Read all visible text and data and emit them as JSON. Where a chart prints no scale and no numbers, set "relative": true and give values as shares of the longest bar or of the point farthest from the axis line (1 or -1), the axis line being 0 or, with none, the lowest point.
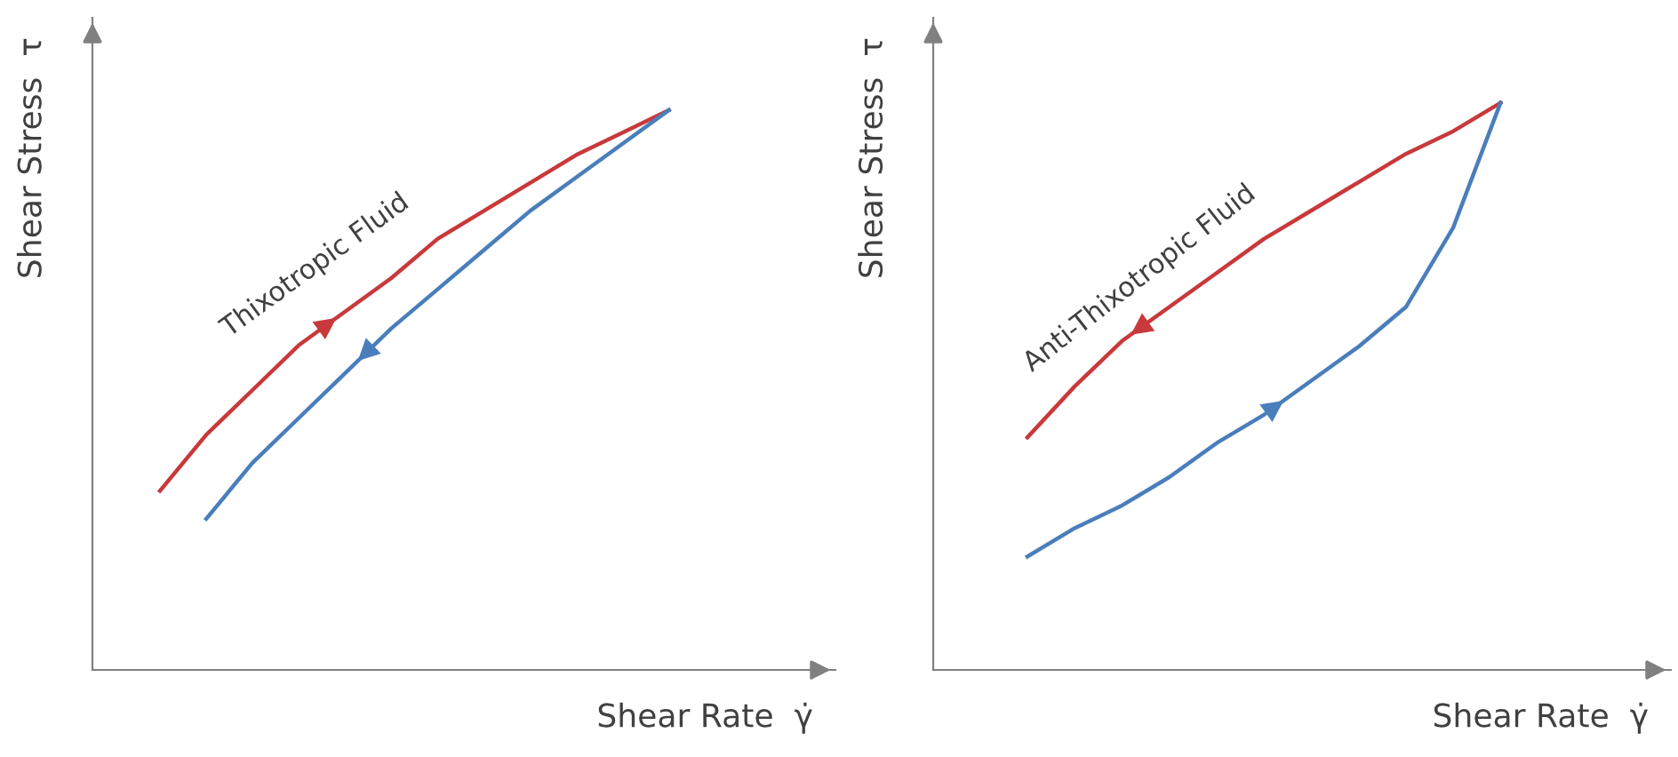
{
  "chart_data": [
    {
      "type": "line",
      "relative": true,
      "xlabel": "Shear Rate  γ̇",
      "ylabel": "Shear Stress  τ",
      "tick_labels": false,
      "annotations": [
        "Thixotropic Fluid"
      ],
      "categories": [
        null,
        null,
        null,
        null,
        null,
        null,
        null,
        null,
        null,
        null,
        null,
        null
      ],
      "series": [
        {
          "color": "#c8393b",
          "values": [
            0.32,
            0.42,
            0.5,
            0.58,
            0.64,
            0.7,
            0.77,
            0.82,
            0.87,
            0.92,
            0.96,
            1.0
          ]
        },
        {
          "color": "#4a7ebb",
          "values": [
            null,
            0.27,
            0.37,
            0.45,
            0.53,
            0.61,
            0.68,
            0.75,
            0.82,
            0.88,
            0.94,
            1.0
          ]
        }
      ]
    },
    {
      "type": "line",
      "relative": true,
      "xlabel": "Shear Rate  γ̇",
      "ylabel": "Shear Stress  τ",
      "tick_labels": false,
      "annotations": [
        "Anti-Thixotropic Fluid"
      ],
      "categories": [
        null,
        null,
        null,
        null,
        null,
        null,
        null,
        null,
        null,
        null,
        null
      ],
      "series": [
        {
          "color": "#c8393b",
          "values": [
            0.41,
            0.5,
            0.58,
            0.64,
            0.7,
            0.76,
            0.81,
            0.86,
            0.91,
            0.95,
            1.0
          ]
        },
        {
          "color": "#4a7ebb",
          "values": [
            0.2,
            0.25,
            0.29,
            0.34,
            0.4,
            0.45,
            0.51,
            0.57,
            0.64,
            0.78,
            1.0
          ]
        }
      ]
    }
  ]
}
